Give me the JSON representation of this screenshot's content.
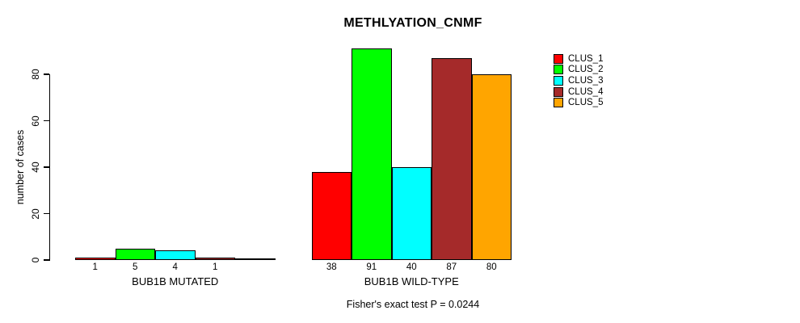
{
  "chart_data": {
    "type": "bar",
    "title": "METHLYATION_CNMF",
    "ylabel": "number of cases",
    "xlabel": "",
    "ylim": [
      0,
      80
    ],
    "yticks": [
      0,
      20,
      40,
      60,
      80
    ],
    "grid": false,
    "legend_position": "right",
    "series_names": [
      "CLUS_1",
      "CLUS_2",
      "CLUS_3",
      "CLUS_4",
      "CLUS_5"
    ],
    "legend": [
      {
        "label": "CLUS_1",
        "color": "#FF0000"
      },
      {
        "label": "CLUS_2",
        "color": "#00FF00"
      },
      {
        "label": "CLUS_3",
        "color": "#00FFFF"
      },
      {
        "label": "CLUS_4",
        "color": "#A52A2A"
      },
      {
        "label": "CLUS_5",
        "color": "#FFA500"
      }
    ],
    "groups": [
      {
        "label": "BUB1B MUTATED",
        "values": [
          1,
          5,
          4,
          1,
          0
        ],
        "bar_labels": [
          "1",
          "5",
          "4",
          "1",
          ""
        ]
      },
      {
        "label": "BUB1B WILD-TYPE",
        "values": [
          38,
          91,
          40,
          87,
          80
        ],
        "bar_labels": [
          "38",
          "91",
          "40",
          "87",
          "80"
        ]
      }
    ],
    "annotation": "Fisher's exact test P = 0.0244"
  }
}
